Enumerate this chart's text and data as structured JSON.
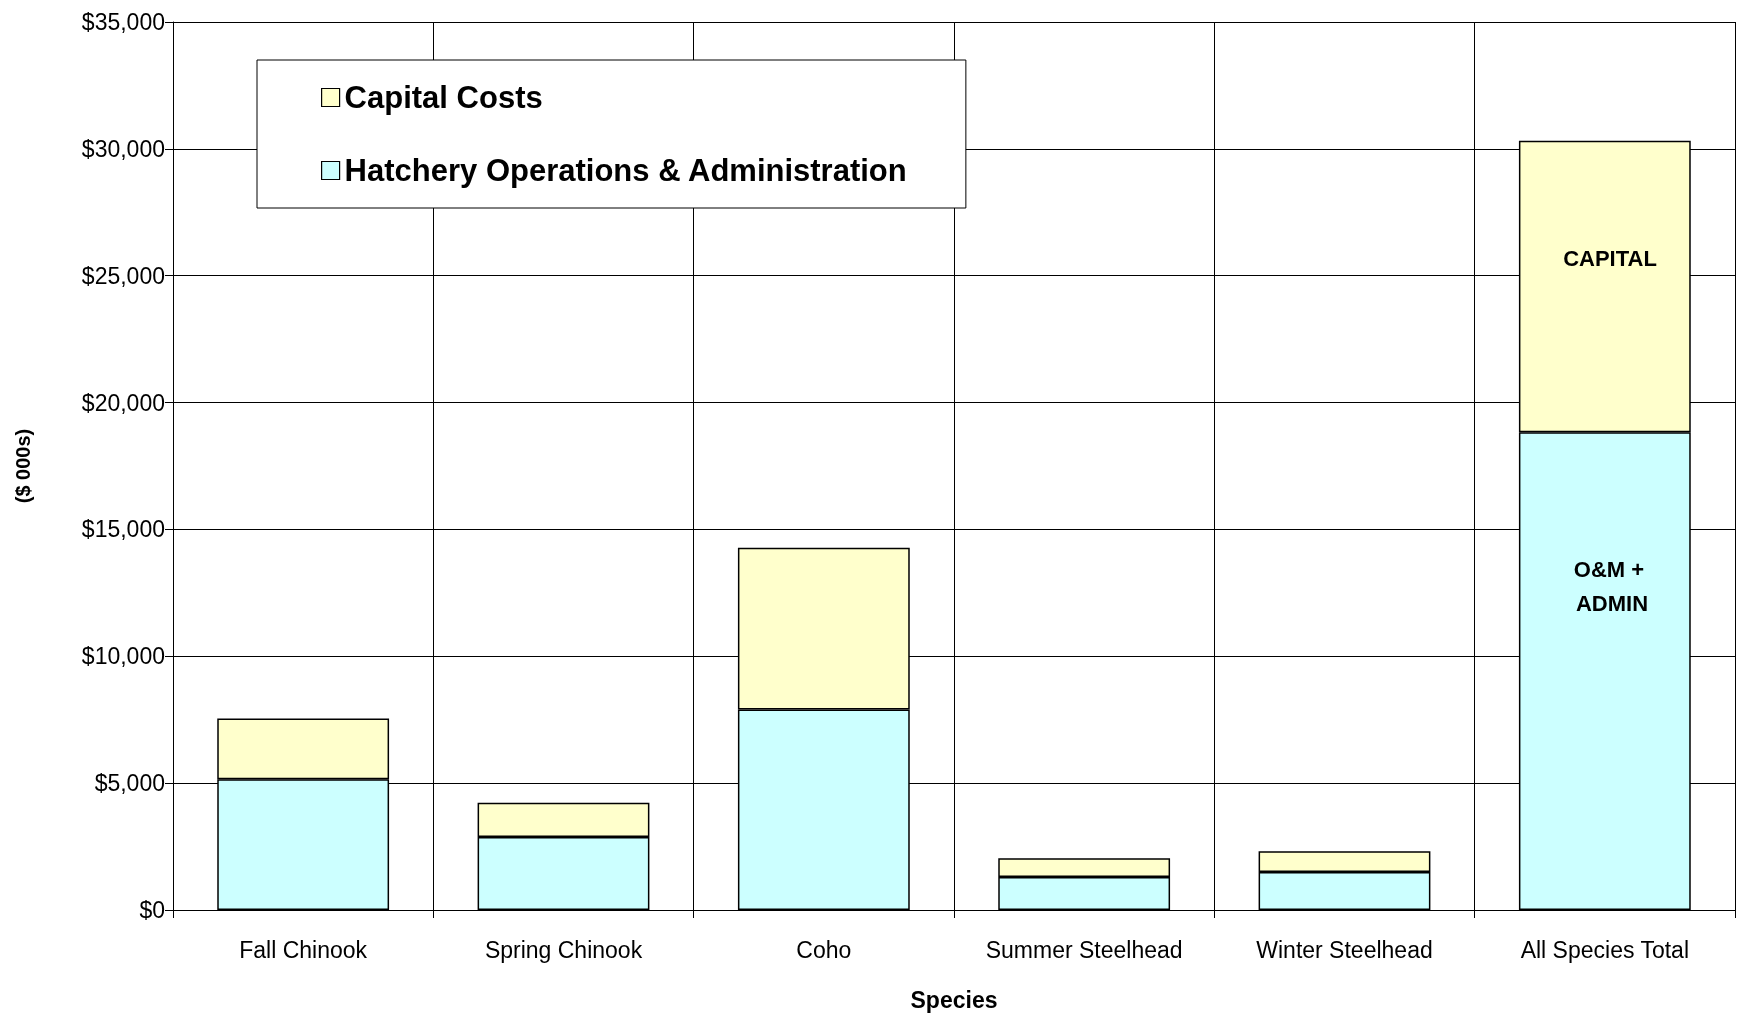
{
  "chart_data": {
    "type": "bar",
    "stacked": true,
    "xlabel": "Species",
    "ylabel": "($ 000s)",
    "categories": [
      "Fall Chinook",
      "Spring Chinook",
      "Coho",
      "Summer Steelhead",
      "Winter Steelhead",
      "All Species Total"
    ],
    "series": [
      {
        "name": "Hatchery Operations & Administration",
        "color": "#ccffff",
        "values": [
          5150,
          2880,
          7900,
          1300,
          1500,
          18830
        ]
      },
      {
        "name": "Capital Costs",
        "color": "#ffffcc",
        "values": [
          2400,
          1350,
          6380,
          740,
          820,
          11490
        ]
      }
    ],
    "ylim": [
      0,
      35000
    ],
    "yticks": [
      {
        "value": 0,
        "label": "$0"
      },
      {
        "value": 5000,
        "label": "$5,000"
      },
      {
        "value": 10000,
        "label": "$10,000"
      },
      {
        "value": 15000,
        "label": "$15,000"
      },
      {
        "value": 20000,
        "label": "$20,000"
      },
      {
        "value": 25000,
        "label": "$25,000"
      },
      {
        "value": 30000,
        "label": "$30,000"
      },
      {
        "value": 35000,
        "label": "$35,000"
      }
    ],
    "grid": true,
    "legend": "top left",
    "annotations": [
      "CAPITAL",
      "O&M + ADMIN"
    ]
  }
}
